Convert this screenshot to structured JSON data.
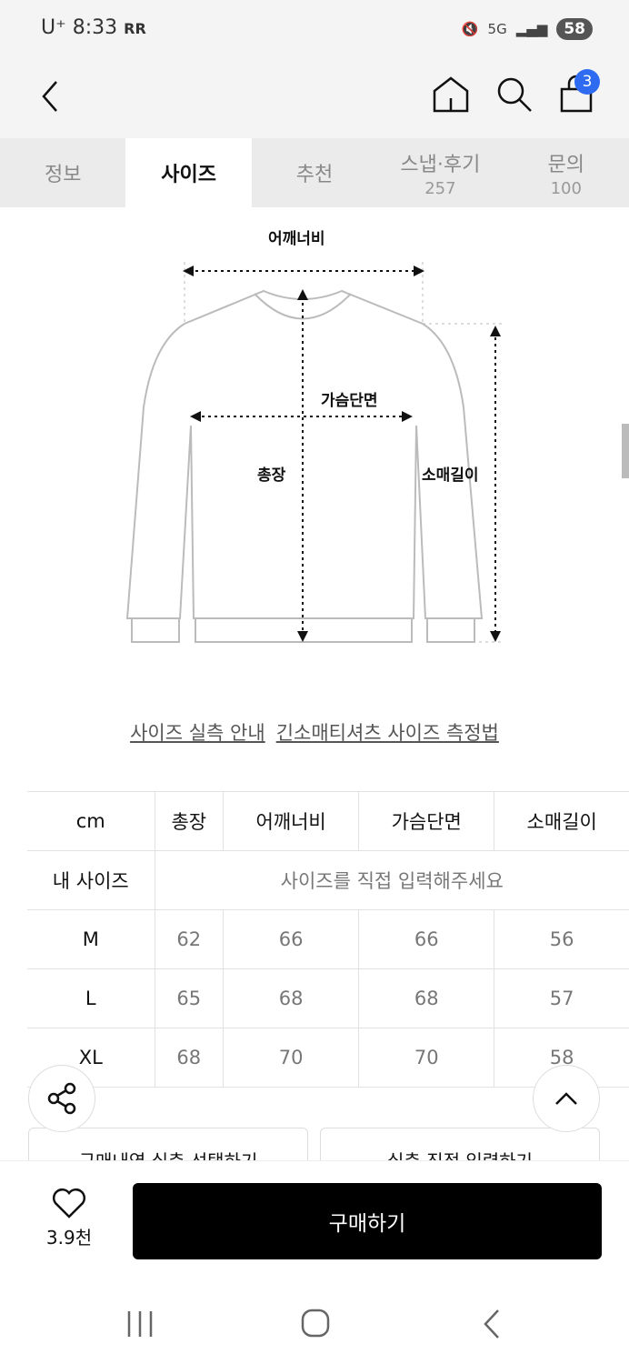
{
  "status": {
    "carrier": "U⁺",
    "time": "8:33",
    "extra": "RR",
    "network": "5G",
    "battery": "58"
  },
  "header": {
    "cart_count": "3"
  },
  "tabs": [
    {
      "label": "정보"
    },
    {
      "label": "사이즈",
      "active": true
    },
    {
      "label": "추천"
    },
    {
      "label": "스냅·후기",
      "count": "257"
    },
    {
      "label": "문의",
      "count": "100"
    }
  ],
  "diagram": {
    "shoulder": "어깨너비",
    "chest": "가슴단면",
    "length": "총장",
    "sleeve": "소매길이"
  },
  "links": {
    "guide": "사이즈 실측 안내",
    "method": "긴소매티셔츠 사이즈 측정법"
  },
  "table": {
    "headers": [
      "cm",
      "총장",
      "어깨너비",
      "가슴단면",
      "소매길이"
    ],
    "my_size_label": "내 사이즈",
    "my_size_placeholder": "사이즈를 직접 입력해주세요",
    "rows": [
      {
        "size": "M",
        "values": [
          "62",
          "66",
          "66",
          "56"
        ]
      },
      {
        "size": "L",
        "values": [
          "65",
          "68",
          "68",
          "57"
        ]
      },
      {
        "size": "XL",
        "values": [
          "68",
          "70",
          "70",
          "58"
        ]
      }
    ]
  },
  "buttons": {
    "history": "구매내역 실측 선택하기",
    "direct": "실측 직접 입력하기",
    "buy": "구매하기"
  },
  "likes": "3.9천",
  "colors": {
    "accent": "#2f6bf0",
    "buy": "#000000"
  }
}
